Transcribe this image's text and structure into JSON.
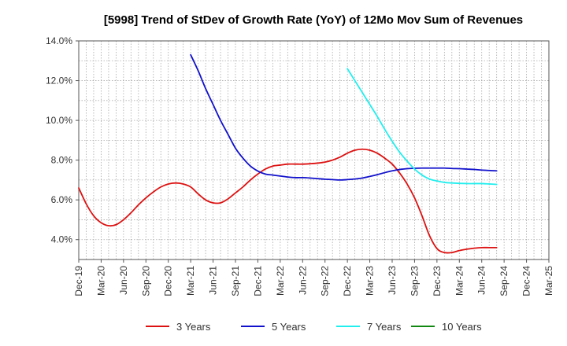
{
  "chart_data": {
    "type": "line",
    "title": "[5998]  Trend of StDev of Growth Rate (YoY) of 12Mo Mov Sum of Revenues",
    "xlabel": "",
    "ylabel": "",
    "ylim": [
      3.0,
      14.0
    ],
    "y_ticks": [
      4.0,
      6.0,
      8.0,
      10.0,
      12.0,
      14.0
    ],
    "y_tick_labels": [
      "4.0%",
      "6.0%",
      "8.0%",
      "10.0%",
      "12.0%",
      "14.0%"
    ],
    "x_tick_labels": [
      "Dec-19",
      "Mar-20",
      "Jun-20",
      "Sep-20",
      "Dec-20",
      "Mar-21",
      "Jun-21",
      "Sep-21",
      "Dec-21",
      "Mar-22",
      "Jun-22",
      "Sep-22",
      "Dec-22",
      "Mar-23",
      "Jun-23",
      "Sep-23",
      "Dec-23",
      "Mar-24",
      "Jun-24",
      "Sep-24",
      "Dec-24",
      "Mar-25"
    ],
    "grid": true,
    "legend_position": "bottom",
    "series": [
      {
        "name": "3 Years",
        "color": "#dd1111",
        "points": [
          [
            0,
            6.6
          ],
          [
            1,
            5.8
          ],
          [
            2,
            5.2
          ],
          [
            3,
            4.85
          ],
          [
            4,
            4.7
          ],
          [
            5,
            4.75
          ],
          [
            6,
            5.0
          ],
          [
            7,
            5.35
          ],
          [
            8,
            5.75
          ],
          [
            9,
            6.1
          ],
          [
            10,
            6.4
          ],
          [
            11,
            6.65
          ],
          [
            12,
            6.8
          ],
          [
            13,
            6.85
          ],
          [
            14,
            6.8
          ],
          [
            15,
            6.65
          ],
          [
            16,
            6.3
          ],
          [
            17,
            6.0
          ],
          [
            18,
            5.85
          ],
          [
            19,
            5.85
          ],
          [
            20,
            6.05
          ],
          [
            21,
            6.35
          ],
          [
            22,
            6.65
          ],
          [
            23,
            7.0
          ],
          [
            24,
            7.3
          ],
          [
            25,
            7.55
          ],
          [
            26,
            7.7
          ],
          [
            27,
            7.75
          ],
          [
            28,
            7.8
          ],
          [
            29,
            7.8
          ],
          [
            30,
            7.8
          ],
          [
            31,
            7.82
          ],
          [
            32,
            7.85
          ],
          [
            33,
            7.9
          ],
          [
            34,
            8.0
          ],
          [
            35,
            8.15
          ],
          [
            36,
            8.35
          ],
          [
            37,
            8.5
          ],
          [
            38,
            8.55
          ],
          [
            39,
            8.5
          ],
          [
            40,
            8.35
          ],
          [
            41,
            8.1
          ],
          [
            42,
            7.8
          ],
          [
            43,
            7.35
          ],
          [
            44,
            6.8
          ],
          [
            45,
            6.1
          ],
          [
            46,
            5.2
          ],
          [
            47,
            4.2
          ],
          [
            48,
            3.55
          ],
          [
            49,
            3.35
          ],
          [
            50,
            3.35
          ],
          [
            51,
            3.45
          ],
          [
            52,
            3.52
          ],
          [
            53,
            3.57
          ],
          [
            54,
            3.6
          ],
          [
            55,
            3.6
          ],
          [
            56,
            3.6
          ]
        ]
      },
      {
        "name": "5 Years",
        "color": "#1111cc",
        "points": [
          [
            15,
            13.3
          ],
          [
            16,
            12.5
          ],
          [
            17,
            11.6
          ],
          [
            18,
            10.8
          ],
          [
            19,
            10.0
          ],
          [
            20,
            9.3
          ],
          [
            21,
            8.6
          ],
          [
            22,
            8.1
          ],
          [
            23,
            7.7
          ],
          [
            24,
            7.45
          ],
          [
            25,
            7.3
          ],
          [
            26,
            7.25
          ],
          [
            27,
            7.2
          ],
          [
            28,
            7.15
          ],
          [
            29,
            7.12
          ],
          [
            30,
            7.12
          ],
          [
            31,
            7.1
          ],
          [
            32,
            7.07
          ],
          [
            33,
            7.04
          ],
          [
            34,
            7.02
          ],
          [
            35,
            7.0
          ],
          [
            36,
            7.02
          ],
          [
            37,
            7.05
          ],
          [
            38,
            7.1
          ],
          [
            39,
            7.18
          ],
          [
            40,
            7.27
          ],
          [
            41,
            7.37
          ],
          [
            42,
            7.46
          ],
          [
            43,
            7.53
          ],
          [
            44,
            7.57
          ],
          [
            45,
            7.59
          ],
          [
            46,
            7.6
          ],
          [
            47,
            7.6
          ],
          [
            48,
            7.6
          ],
          [
            49,
            7.6
          ],
          [
            50,
            7.58
          ],
          [
            51,
            7.57
          ],
          [
            52,
            7.55
          ],
          [
            53,
            7.53
          ],
          [
            54,
            7.5
          ],
          [
            55,
            7.48
          ],
          [
            56,
            7.46
          ]
        ]
      },
      {
        "name": "7 Years",
        "color": "#22eeee",
        "points": [
          [
            36,
            12.6
          ],
          [
            37,
            12.0
          ],
          [
            38,
            11.4
          ],
          [
            39,
            10.8
          ],
          [
            40,
            10.2
          ],
          [
            41,
            9.55
          ],
          [
            42,
            8.95
          ],
          [
            43,
            8.4
          ],
          [
            44,
            7.95
          ],
          [
            45,
            7.55
          ],
          [
            46,
            7.25
          ],
          [
            47,
            7.05
          ],
          [
            48,
            6.95
          ],
          [
            49,
            6.88
          ],
          [
            50,
            6.85
          ],
          [
            51,
            6.83
          ],
          [
            52,
            6.82
          ],
          [
            53,
            6.82
          ],
          [
            54,
            6.82
          ],
          [
            55,
            6.8
          ],
          [
            56,
            6.78
          ]
        ]
      },
      {
        "name": "10 Years",
        "color": "#118811",
        "points": []
      }
    ]
  }
}
